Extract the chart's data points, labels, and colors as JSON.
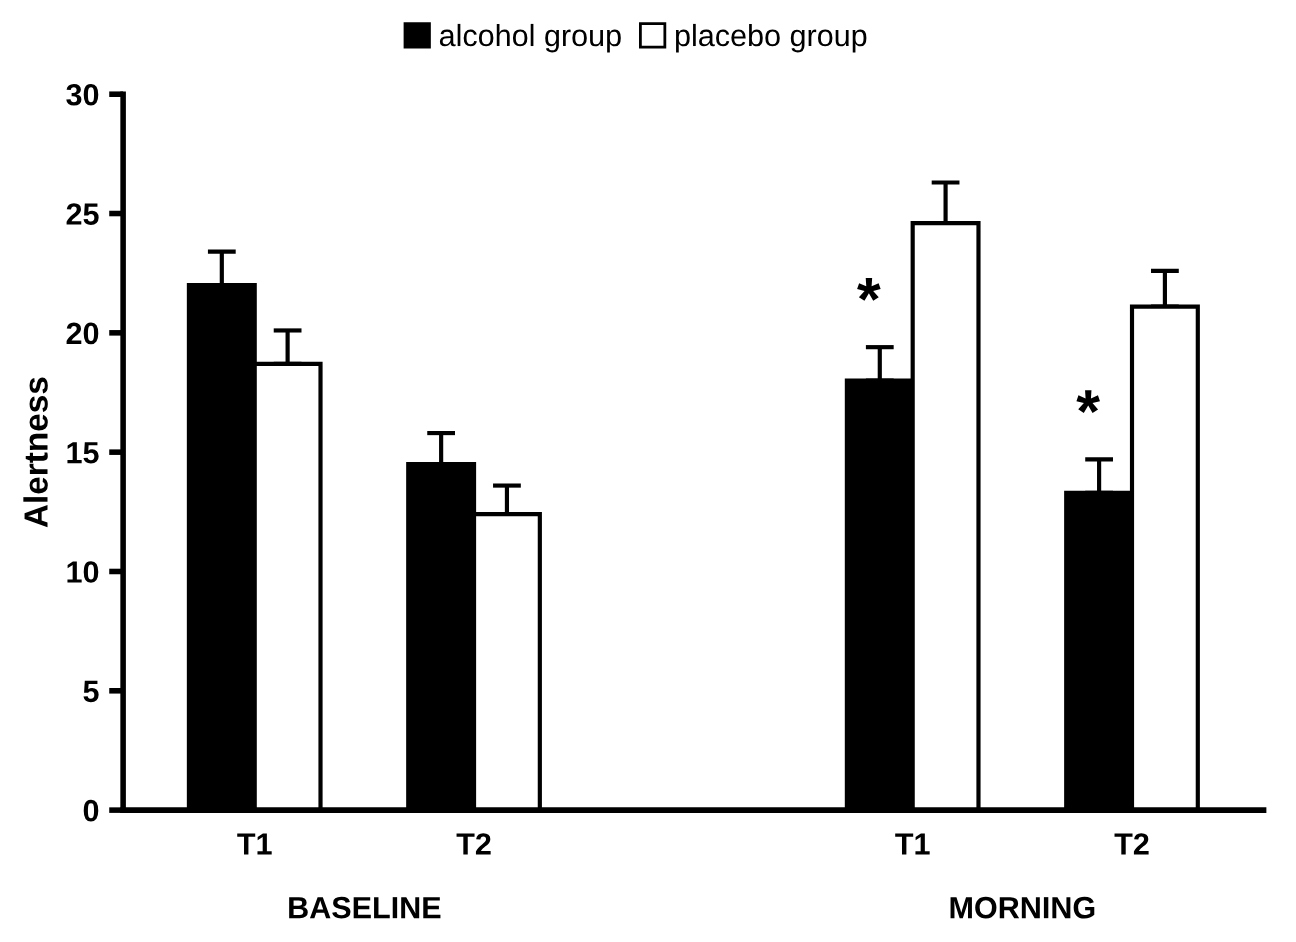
{
  "chart_data": {
    "type": "bar",
    "ylabel": "Alertness",
    "categories": [
      "T1",
      "T2",
      null,
      "T1",
      "T2"
    ],
    "series": [
      {
        "name": "alcohol group",
        "color": "#000000",
        "values": [
          22.0,
          14.5,
          null,
          18.0,
          13.3
        ],
        "errors": [
          [
            22.0,
            23.4
          ],
          [
            14.5,
            15.8
          ],
          null,
          [
            18.0,
            19.4
          ],
          [
            13.3,
            14.7
          ]
        ],
        "value_labels": [
          null,
          null,
          null,
          "*",
          "*"
        ]
      },
      {
        "name": "placebo group",
        "color": "#ffffff",
        "values": [
          18.7,
          12.4,
          null,
          24.6,
          21.1
        ],
        "errors": [
          [
            18.7,
            20.1
          ],
          [
            12.4,
            13.6
          ],
          null,
          [
            24.6,
            26.3
          ],
          [
            21.1,
            22.6
          ]
        ]
      }
    ],
    "annotations": [
      "BASELINE",
      "MORNING"
    ],
    "ylim": [
      0,
      30
    ],
    "yticks": [
      0,
      5,
      10,
      15,
      20,
      25,
      30
    ],
    "grid": false,
    "legend": "top"
  }
}
